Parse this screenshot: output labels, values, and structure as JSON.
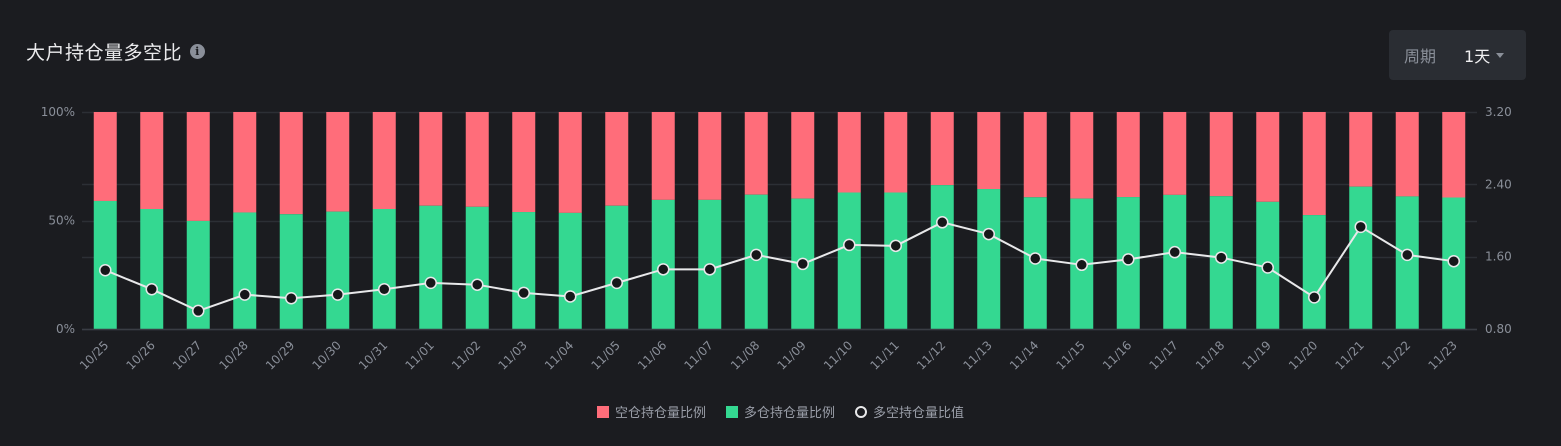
{
  "header": {
    "title": "大户持仓量多空比",
    "info_icon": "info-icon",
    "period_label": "周期",
    "period_value": "1天"
  },
  "colors": {
    "short": "#ff6d7a",
    "long": "#34d891",
    "line": "#e8e8ea",
    "background": "#1b1c20",
    "grid": "#2c2f35",
    "axis_text": "#8a8f99"
  },
  "legend": [
    {
      "label": "空仓持仓量比例",
      "color": "#ff6d7a",
      "shape": "square"
    },
    {
      "label": "多仓持仓量比例",
      "color": "#34d891",
      "shape": "square"
    },
    {
      "label": "多空持仓量比值",
      "color": "#e8e8ea",
      "shape": "ring"
    }
  ],
  "chart_data": {
    "type": "bar",
    "title": "大户持仓量多空比",
    "xlabel": "",
    "ylabel": "",
    "categories": [
      "10/25",
      "10/26",
      "10/27",
      "10/28",
      "10/29",
      "10/30",
      "10/31",
      "11/01",
      "11/02",
      "11/03",
      "11/04",
      "11/05",
      "11/06",
      "11/07",
      "11/08",
      "11/09",
      "11/10",
      "11/11",
      "11/12",
      "11/13",
      "11/14",
      "11/15",
      "11/16",
      "11/17",
      "11/18",
      "11/19",
      "11/20",
      "11/21",
      "11/22",
      "11/23"
    ],
    "series": [
      {
        "name": "多仓持仓量比例",
        "type": "bar",
        "stack": "ratio",
        "axis": "left",
        "unit": "%",
        "values": [
          59.0,
          55.3,
          49.8,
          53.7,
          52.9,
          54.1,
          55.3,
          56.8,
          56.3,
          53.9,
          53.5,
          56.8,
          59.5,
          59.5,
          61.9,
          60.1,
          62.9,
          62.9,
          66.3,
          64.5,
          60.7,
          60.1,
          60.8,
          61.8,
          61.2,
          58.6,
          52.5,
          65.6,
          61.1,
          60.6
        ]
      },
      {
        "name": "空仓持仓量比例",
        "type": "bar",
        "stack": "ratio",
        "axis": "left",
        "unit": "%",
        "values": [
          41.0,
          44.7,
          50.2,
          46.3,
          47.1,
          45.9,
          44.7,
          43.2,
          43.7,
          46.1,
          46.5,
          43.2,
          40.5,
          40.5,
          38.1,
          39.9,
          37.1,
          37.1,
          33.7,
          35.5,
          39.3,
          39.9,
          39.2,
          38.2,
          38.8,
          41.4,
          47.5,
          34.4,
          38.9,
          39.4
        ]
      },
      {
        "name": "多空持仓量比值",
        "type": "line",
        "axis": "right",
        "values": [
          1.45,
          1.24,
          1.0,
          1.18,
          1.14,
          1.18,
          1.24,
          1.31,
          1.29,
          1.2,
          1.16,
          1.31,
          1.46,
          1.46,
          1.62,
          1.52,
          1.73,
          1.72,
          1.98,
          1.85,
          1.58,
          1.51,
          1.57,
          1.65,
          1.59,
          1.48,
          1.15,
          1.93,
          1.62,
          1.55
        ]
      }
    ],
    "y_left": {
      "ticks": [
        "0%",
        "50%",
        "100%"
      ],
      "range": [
        0,
        100
      ]
    },
    "y_right": {
      "ticks": [
        "0.80",
        "1.60",
        "2.40",
        "3.20"
      ],
      "range": [
        0.8,
        3.2
      ]
    },
    "grid": true,
    "legend_position": "bottom"
  }
}
